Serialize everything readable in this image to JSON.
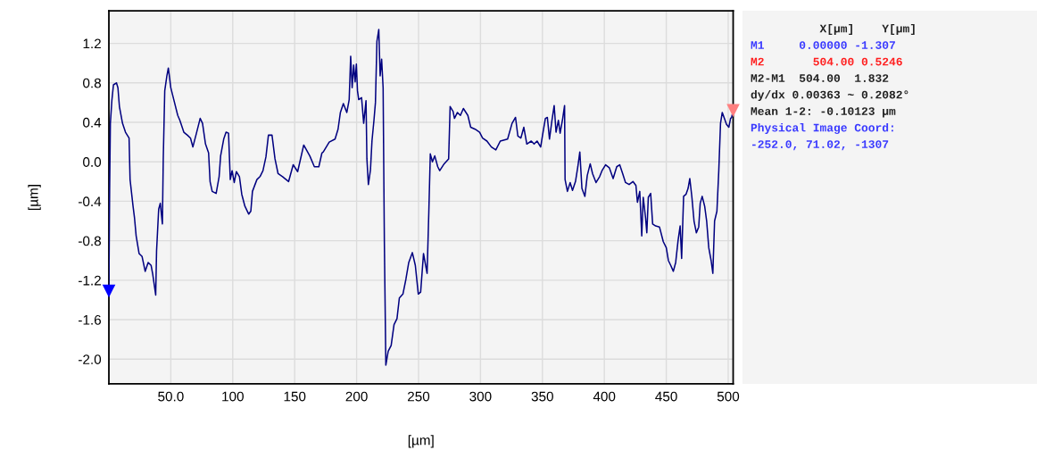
{
  "chart_data": {
    "type": "line",
    "xlabel": "[µm]",
    "ylabel": "[µm]",
    "xlim": [
      0,
      504
    ],
    "ylim": [
      -2.25,
      1.53
    ],
    "xticks": [
      {
        "value": 50,
        "label": "50.0"
      },
      100,
      150,
      200,
      250,
      300,
      350,
      400,
      450,
      500
    ],
    "yticks": [
      1.2,
      0.8,
      0.4,
      {
        "value": 0,
        "label": "0.0"
      },
      -0.4,
      -0.8,
      -1.2,
      -1.6,
      {
        "value": -2,
        "label": "-2.0"
      }
    ],
    "grid": true,
    "legend": false,
    "series": [
      {
        "color": "#000080",
        "x": [
          0,
          0.6,
          1.2,
          2.4,
          3.7,
          6.1,
          7.3,
          8.5,
          11,
          13.4,
          16.3,
          17.1,
          19.5,
          20.7,
          22,
          24.4,
          26.8,
          29.3,
          31.7,
          34.1,
          35.4,
          37.8,
          38.5,
          40.2,
          41.5,
          43.2,
          43.9,
          45.1,
          46.8,
          48,
          50,
          52.4,
          55.6,
          57.3,
          60.5,
          63.4,
          65.9,
          67.8,
          70.7,
          73.7,
          75.6,
          78,
          80.5,
          81.7,
          83.4,
          86.6,
          89,
          90.2,
          92.7,
          94.6,
          96.6,
          98,
          99.5,
          101.2,
          102.9,
          105.4,
          107.3,
          109.8,
          112.9,
          114.6,
          115.9,
          119.5,
          122,
          124.4,
          126.8,
          128.8,
          131.7,
          134.1,
          136.6,
          140.2,
          145.1,
          148.8,
          152.4,
          157.3,
          162.2,
          165.9,
          169.5,
          172,
          173.1,
          177.9,
          182.6,
          185,
          186.9,
          189.3,
          192.1,
          194,
          195.2,
          196.4,
          197.6,
          198.8,
          199.8,
          200.7,
          201.7,
          204,
          205.7,
          207.6,
          208.3,
          209.5,
          211.2,
          212.4,
          214,
          215.2,
          216.4,
          217.9,
          219,
          220.2,
          221.4,
          222.4,
          223.6,
          225.5,
          227.9,
          230.2,
          232.6,
          234.5,
          237.4,
          239.8,
          242.1,
          245,
          247.4,
          249.8,
          251.7,
          254,
          256.9,
          258.3,
          259.5,
          261.2,
          263.1,
          265.5,
          267.1,
          270.7,
          274.3,
          275.5,
          277.9,
          279,
          281.4,
          283.8,
          286.2,
          289.8,
          292.1,
          295.7,
          299.3,
          301.7,
          305.2,
          308.8,
          312.4,
          316,
          321.9,
          325.5,
          328.3,
          330.2,
          332.6,
          335,
          337.4,
          341,
          343.3,
          345.7,
          348.6,
          350,
          352.4,
          354,
          355.7,
          357.6,
          359.5,
          361,
          362.9,
          364.3,
          366.4,
          367.9,
          368.3,
          370.2,
          372.4,
          374.3,
          376.7,
          378.6,
          380.2,
          381.9,
          384.3,
          386.2,
          388.6,
          390.5,
          393.3,
          396.2,
          398.1,
          401,
          404,
          407.1,
          410,
          412.4,
          414.8,
          417.1,
          420,
          423.1,
          425.5,
          426.7,
          428.6,
          430.2,
          431.4,
          433.3,
          434.3,
          435.5,
          437.4,
          439,
          441.4,
          444.5,
          447.6,
          450,
          451.7,
          453.6,
          455.7,
          457.6,
          459.5,
          461.2,
          462.4,
          464,
          465.9,
          467.6,
          469,
          470.7,
          472.4,
          474.3,
          476.2,
          477.4,
          479,
          481,
          482.6,
          484.3,
          486.2,
          487.6,
          489,
          490.9,
          492.4,
          493.8,
          495.2,
          496.9,
          498.6,
          500.5,
          501.9,
          502.8,
          504
        ],
        "values": [
          -1.31,
          -0.29,
          0.39,
          0.62,
          0.78,
          0.8,
          0.75,
          0.56,
          0.39,
          0.3,
          0.24,
          -0.18,
          -0.45,
          -0.57,
          -0.75,
          -0.93,
          -0.96,
          -1.11,
          -1.02,
          -1.05,
          -1.14,
          -1.35,
          -0.9,
          -0.48,
          -0.42,
          -0.63,
          0.03,
          0.72,
          0.87,
          0.95,
          0.75,
          0.63,
          0.47,
          0.42,
          0.3,
          0.27,
          0.24,
          0.15,
          0.29,
          0.44,
          0.39,
          0.18,
          0.09,
          -0.2,
          -0.3,
          -0.32,
          -0.15,
          0.06,
          0.23,
          0.3,
          0.29,
          -0.18,
          -0.09,
          -0.21,
          -0.1,
          -0.15,
          -0.33,
          -0.45,
          -0.53,
          -0.5,
          -0.3,
          -0.18,
          -0.15,
          -0.09,
          0.05,
          0.27,
          0.27,
          0.03,
          -0.12,
          -0.15,
          -0.2,
          -0.03,
          -0.1,
          0.17,
          0.06,
          -0.05,
          -0.05,
          0.09,
          0.1,
          0.2,
          0.23,
          0.33,
          0.5,
          0.59,
          0.5,
          0.63,
          1.07,
          0.75,
          0.98,
          0.81,
          0.99,
          0.72,
          0.63,
          0.65,
          0.39,
          0.62,
          0.03,
          -0.23,
          -0.08,
          0.21,
          0.42,
          0.6,
          1.22,
          1.34,
          0.87,
          1.04,
          0.75,
          -0.81,
          -2.06,
          -1.92,
          -1.86,
          -1.65,
          -1.59,
          -1.38,
          -1.34,
          -1.19,
          -1.02,
          -0.92,
          -1.05,
          -1.34,
          -1.32,
          -0.93,
          -1.13,
          -0.51,
          0.08,
          0.0,
          0.06,
          -0.05,
          -0.09,
          -0.02,
          0.03,
          0.56,
          0.51,
          0.44,
          0.5,
          0.47,
          0.54,
          0.47,
          0.35,
          0.33,
          0.3,
          0.24,
          0.21,
          0.15,
          0.12,
          0.21,
          0.23,
          0.39,
          0.45,
          0.26,
          0.24,
          0.35,
          0.18,
          0.21,
          0.18,
          0.21,
          0.15,
          0.26,
          0.44,
          0.45,
          0.23,
          0.41,
          0.57,
          0.3,
          0.42,
          0.29,
          0.44,
          0.57,
          -0.18,
          -0.3,
          -0.21,
          -0.29,
          -0.2,
          -0.05,
          0.1,
          -0.27,
          -0.35,
          -0.14,
          -0.02,
          -0.12,
          -0.21,
          -0.15,
          -0.09,
          -0.03,
          -0.06,
          -0.17,
          -0.05,
          -0.03,
          -0.12,
          -0.21,
          -0.23,
          -0.2,
          -0.24,
          -0.41,
          -0.3,
          -0.75,
          -0.36,
          -0.57,
          -0.72,
          -0.36,
          -0.32,
          -0.63,
          -0.65,
          -0.66,
          -0.81,
          -0.87,
          -1.0,
          -1.05,
          -1.11,
          -1.02,
          -0.8,
          -0.65,
          -0.98,
          -0.35,
          -0.33,
          -0.27,
          -0.17,
          -0.36,
          -0.6,
          -0.72,
          -0.66,
          -0.42,
          -0.35,
          -0.45,
          -0.6,
          -0.87,
          -1.0,
          -1.13,
          -0.6,
          -0.5,
          -0.09,
          0.39,
          0.5,
          0.44,
          0.38,
          0.35,
          0.44,
          0.45,
          0.52
        ]
      },
      {
        "type": "scatter",
        "marker": "triangle",
        "color": "#0000ff",
        "x": [
          0
        ],
        "values": [
          -1.31
        ]
      },
      {
        "type": "scatter",
        "marker": "triangle",
        "color": "#ff8080",
        "x": [
          504
        ],
        "values": [
          0.52
        ]
      }
    ],
    "annotations": [
      "          X[µm]    Y[µm]",
      "M1     0.00000 -1.307",
      "M2       504.00 0.5246",
      "M2-M1  504.00  1.832",
      "dy/dx 0.00363 ~ 0.2082°",
      "Mean 1-2: -0.10123 µm",
      "Physical Image Coord:",
      "-252.0, 71.02, -1307"
    ]
  }
}
